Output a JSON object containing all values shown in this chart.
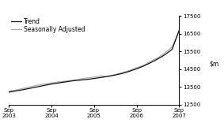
{
  "ylim": [
    12500,
    17500
  ],
  "yticks": [
    12500,
    13500,
    14500,
    15500,
    16500,
    17500
  ],
  "xtick_labels": [
    "Sep\n2003",
    "Sep\n2004",
    "Sep\n2005",
    "Sep\n2006",
    "Sep\n2007"
  ],
  "trend_color": "#111111",
  "seasonal_color": "#aaaaaa",
  "legend_trend": "Trend",
  "legend_seasonal": "Seasonally Adjusted",
  "trend_x": [
    0,
    2,
    4,
    6,
    8,
    10,
    12,
    14,
    16,
    18,
    20,
    22,
    24,
    26,
    28,
    30,
    32,
    34,
    36,
    38,
    40,
    42,
    44,
    46,
    48
  ],
  "trend_y": [
    13200,
    13270,
    13340,
    13420,
    13500,
    13580,
    13660,
    13720,
    13780,
    13840,
    13880,
    13920,
    13970,
    14030,
    14100,
    14170,
    14260,
    14380,
    14520,
    14680,
    14870,
    15080,
    15320,
    15620,
    16700
  ],
  "seasonal_x": [
    0,
    2,
    4,
    6,
    8,
    10,
    12,
    14,
    16,
    18,
    20,
    22,
    24,
    26,
    28,
    30,
    32,
    34,
    36,
    38,
    40,
    42,
    44,
    46,
    48
  ],
  "seasonal_y": [
    13250,
    13320,
    13410,
    13500,
    13590,
    13650,
    13720,
    13780,
    13820,
    13870,
    13940,
    14000,
    14050,
    14120,
    14080,
    14200,
    14300,
    14430,
    14580,
    14720,
    14950,
    15150,
    15420,
    15750,
    16680
  ],
  "xtick_positions": [
    0,
    12,
    24,
    36,
    48
  ],
  "background_color": "#ffffff"
}
